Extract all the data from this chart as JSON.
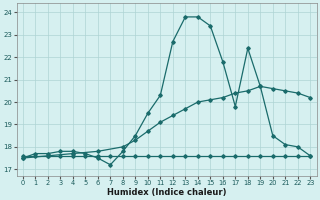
{
  "xlabel": "Humidex (Indice chaleur)",
  "background_color": "#d6f0f0",
  "grid_color": "#aed4d4",
  "line_color": "#1a6b6b",
  "xlim": [
    -0.5,
    23.5
  ],
  "ylim": [
    16.7,
    24.4
  ],
  "xticks": [
    0,
    1,
    2,
    3,
    4,
    5,
    6,
    7,
    8,
    9,
    10,
    11,
    12,
    13,
    14,
    15,
    16,
    17,
    18,
    19,
    20,
    21,
    22,
    23
  ],
  "yticks": [
    17,
    18,
    19,
    20,
    21,
    22,
    23,
    24
  ],
  "line1_x": [
    0,
    1,
    2,
    3,
    4,
    5,
    6,
    7,
    8,
    9,
    10,
    11,
    12,
    13,
    14,
    15,
    16,
    17,
    18,
    19,
    20,
    21,
    22,
    23
  ],
  "line1_y": [
    17.6,
    17.6,
    17.6,
    17.6,
    17.6,
    17.6,
    17.6,
    17.6,
    17.6,
    17.6,
    17.6,
    17.6,
    17.6,
    17.6,
    17.6,
    17.6,
    17.6,
    17.6,
    17.6,
    17.6,
    17.6,
    17.6,
    17.6,
    17.6
  ],
  "line2_x": [
    0,
    2,
    4,
    6,
    8,
    9,
    10,
    11,
    12,
    13,
    14,
    15,
    16,
    17,
    18,
    19,
    20,
    21,
    22,
    23
  ],
  "line2_y": [
    17.5,
    17.6,
    17.7,
    17.8,
    18.0,
    18.3,
    18.7,
    19.1,
    19.4,
    19.7,
    20.0,
    20.1,
    20.2,
    20.4,
    20.5,
    20.7,
    20.6,
    20.5,
    20.4,
    20.2
  ],
  "line3_x": [
    0,
    1,
    2,
    3,
    4,
    5,
    6,
    7,
    8,
    9,
    10,
    11,
    12,
    13,
    14,
    15,
    16,
    17,
    18,
    19,
    20,
    21,
    22,
    23
  ],
  "line3_y": [
    17.5,
    17.7,
    17.7,
    17.8,
    17.8,
    17.7,
    17.5,
    17.2,
    17.8,
    18.5,
    19.5,
    20.3,
    22.7,
    23.8,
    23.8,
    23.4,
    21.8,
    19.8,
    22.4,
    20.7,
    18.5,
    18.1,
    18.0,
    17.6
  ]
}
